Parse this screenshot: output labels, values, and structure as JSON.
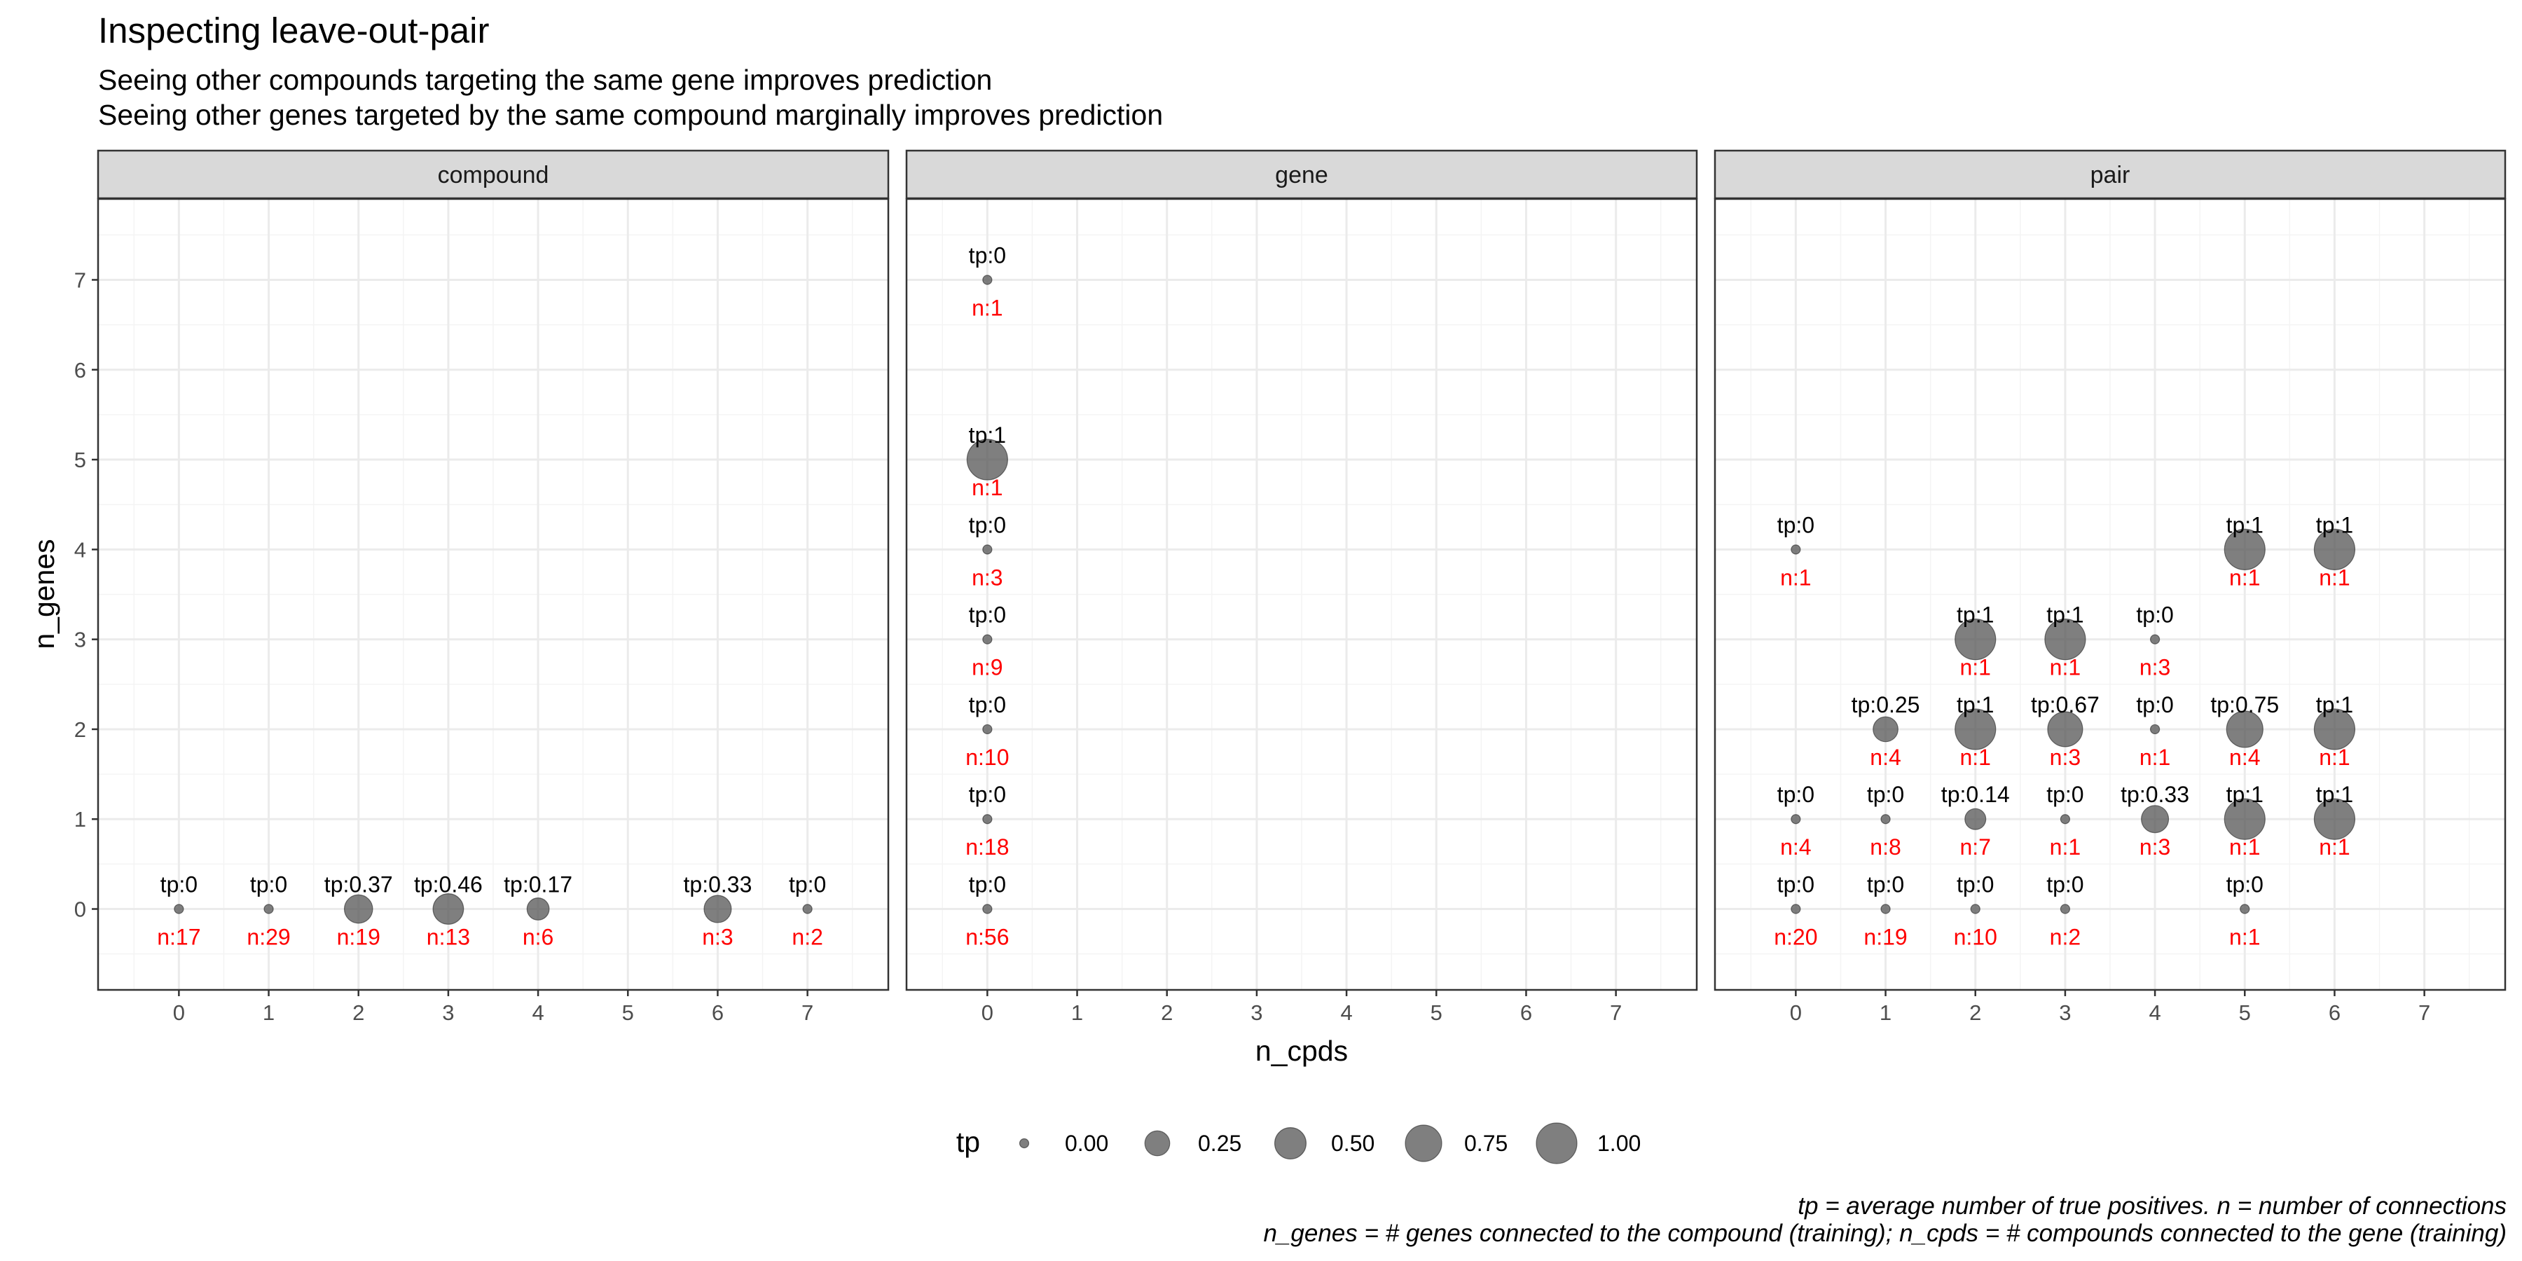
{
  "title": "Inspecting leave-out-pair",
  "subtitle_lines": [
    "Seeing other compounds targeting the same gene improves prediction",
    "Seeing other genes targeted by the same compound marginally improves prediction"
  ],
  "caption_lines": [
    "tp = average number of true positives. n = number of connections",
    "n_genes = # genes connected to the compound (training); n_cpds = # compounds connected to the gene (training)"
  ],
  "colors": {
    "point": "#4d4d4d",
    "n_label": "#ff0000",
    "strip_bg": "#d9d9d9",
    "panel_border": "#333333",
    "grid_major": "#ebebeb"
  },
  "chart_data": {
    "type": "scatter",
    "xlabel": "n_cpds",
    "ylabel": "n_genes",
    "xlim": [
      -0.9,
      7.9
    ],
    "ylim": [
      -0.9,
      7.9
    ],
    "x_ticks": [
      0,
      1,
      2,
      3,
      4,
      5,
      6,
      7
    ],
    "y_ticks": [
      0,
      1,
      2,
      3,
      4,
      5,
      6,
      7
    ],
    "size_legend": {
      "title": "tp",
      "values": [
        0.0,
        0.25,
        0.5,
        0.75,
        1.0
      ],
      "labels": [
        "0.00",
        "0.25",
        "0.50",
        "0.75",
        "1.00"
      ],
      "placement": "bottom"
    },
    "grid": true,
    "facets": [
      {
        "name": "compound",
        "points": [
          {
            "x": 0,
            "y": 0,
            "tp": 0,
            "tp_label": "tp:0",
            "n_label": "n:17"
          },
          {
            "x": 1,
            "y": 0,
            "tp": 0,
            "tp_label": "tp:0",
            "n_label": "n:29"
          },
          {
            "x": 2,
            "y": 0,
            "tp": 0.37,
            "tp_label": "tp:0.37",
            "n_label": "n:19"
          },
          {
            "x": 3,
            "y": 0,
            "tp": 0.46,
            "tp_label": "tp:0.46",
            "n_label": "n:13"
          },
          {
            "x": 4,
            "y": 0,
            "tp": 0.17,
            "tp_label": "tp:0.17",
            "n_label": "n:6"
          },
          {
            "x": 6,
            "y": 0,
            "tp": 0.33,
            "tp_label": "tp:0.33",
            "n_label": "n:3"
          },
          {
            "x": 7,
            "y": 0,
            "tp": 0,
            "tp_label": "tp:0",
            "n_label": "n:2"
          }
        ]
      },
      {
        "name": "gene",
        "points": [
          {
            "x": 0,
            "y": 7,
            "tp": 0,
            "tp_label": "tp:0",
            "n_label": "n:1"
          },
          {
            "x": 0,
            "y": 5,
            "tp": 1,
            "tp_label": "tp:1",
            "n_label": "n:1"
          },
          {
            "x": 0,
            "y": 4,
            "tp": 0,
            "tp_label": "tp:0",
            "n_label": "n:3"
          },
          {
            "x": 0,
            "y": 3,
            "tp": 0,
            "tp_label": "tp:0",
            "n_label": "n:9"
          },
          {
            "x": 0,
            "y": 2,
            "tp": 0,
            "tp_label": "tp:0",
            "n_label": "n:10"
          },
          {
            "x": 0,
            "y": 1,
            "tp": 0,
            "tp_label": "tp:0",
            "n_label": "n:18"
          },
          {
            "x": 0,
            "y": 0,
            "tp": 0,
            "tp_label": "tp:0",
            "n_label": "n:56"
          }
        ]
      },
      {
        "name": "pair",
        "points": [
          {
            "x": 0,
            "y": 4,
            "tp": 0,
            "tp_label": "tp:0",
            "n_label": "n:1"
          },
          {
            "x": 5,
            "y": 4,
            "tp": 1,
            "tp_label": "tp:1",
            "n_label": "n:1"
          },
          {
            "x": 6,
            "y": 4,
            "tp": 1,
            "tp_label": "tp:1",
            "n_label": "n:1"
          },
          {
            "x": 2,
            "y": 3,
            "tp": 1,
            "tp_label": "tp:1",
            "n_label": "n:1"
          },
          {
            "x": 3,
            "y": 3,
            "tp": 1,
            "tp_label": "tp:1",
            "n_label": "n:1"
          },
          {
            "x": 4,
            "y": 3,
            "tp": 0,
            "tp_label": "tp:0",
            "n_label": "n:3"
          },
          {
            "x": 1,
            "y": 2,
            "tp": 0.25,
            "tp_label": "tp:0.25",
            "n_label": "n:4"
          },
          {
            "x": 2,
            "y": 2,
            "tp": 1,
            "tp_label": "tp:1",
            "n_label": "n:1"
          },
          {
            "x": 3,
            "y": 2,
            "tp": 0.67,
            "tp_label": "tp:0.67",
            "n_label": "n:3"
          },
          {
            "x": 4,
            "y": 2,
            "tp": 0,
            "tp_label": "tp:0",
            "n_label": "n:1"
          },
          {
            "x": 5,
            "y": 2,
            "tp": 0.75,
            "tp_label": "tp:0.75",
            "n_label": "n:4"
          },
          {
            "x": 6,
            "y": 2,
            "tp": 1,
            "tp_label": "tp:1",
            "n_label": "n:1"
          },
          {
            "x": 0,
            "y": 1,
            "tp": 0,
            "tp_label": "tp:0",
            "n_label": "n:4"
          },
          {
            "x": 1,
            "y": 1,
            "tp": 0,
            "tp_label": "tp:0",
            "n_label": "n:8"
          },
          {
            "x": 2,
            "y": 1,
            "tp": 0.14,
            "tp_label": "tp:0.14",
            "n_label": "n:7"
          },
          {
            "x": 3,
            "y": 1,
            "tp": 0,
            "tp_label": "tp:0",
            "n_label": "n:1"
          },
          {
            "x": 4,
            "y": 1,
            "tp": 0.33,
            "tp_label": "tp:0.33",
            "n_label": "n:3"
          },
          {
            "x": 5,
            "y": 1,
            "tp": 1,
            "tp_label": "tp:1",
            "n_label": "n:1"
          },
          {
            "x": 6,
            "y": 1,
            "tp": 1,
            "tp_label": "tp:1",
            "n_label": "n:1"
          },
          {
            "x": 0,
            "y": 0,
            "tp": 0,
            "tp_label": "tp:0",
            "n_label": "n:20"
          },
          {
            "x": 1,
            "y": 0,
            "tp": 0,
            "tp_label": "tp:0",
            "n_label": "n:19"
          },
          {
            "x": 2,
            "y": 0,
            "tp": 0,
            "tp_label": "tp:0",
            "n_label": "n:10"
          },
          {
            "x": 3,
            "y": 0,
            "tp": 0,
            "tp_label": "tp:0",
            "n_label": "n:2"
          },
          {
            "x": 5,
            "y": 0,
            "tp": 0,
            "tp_label": "tp:0",
            "n_label": "n:1"
          }
        ]
      }
    ]
  }
}
